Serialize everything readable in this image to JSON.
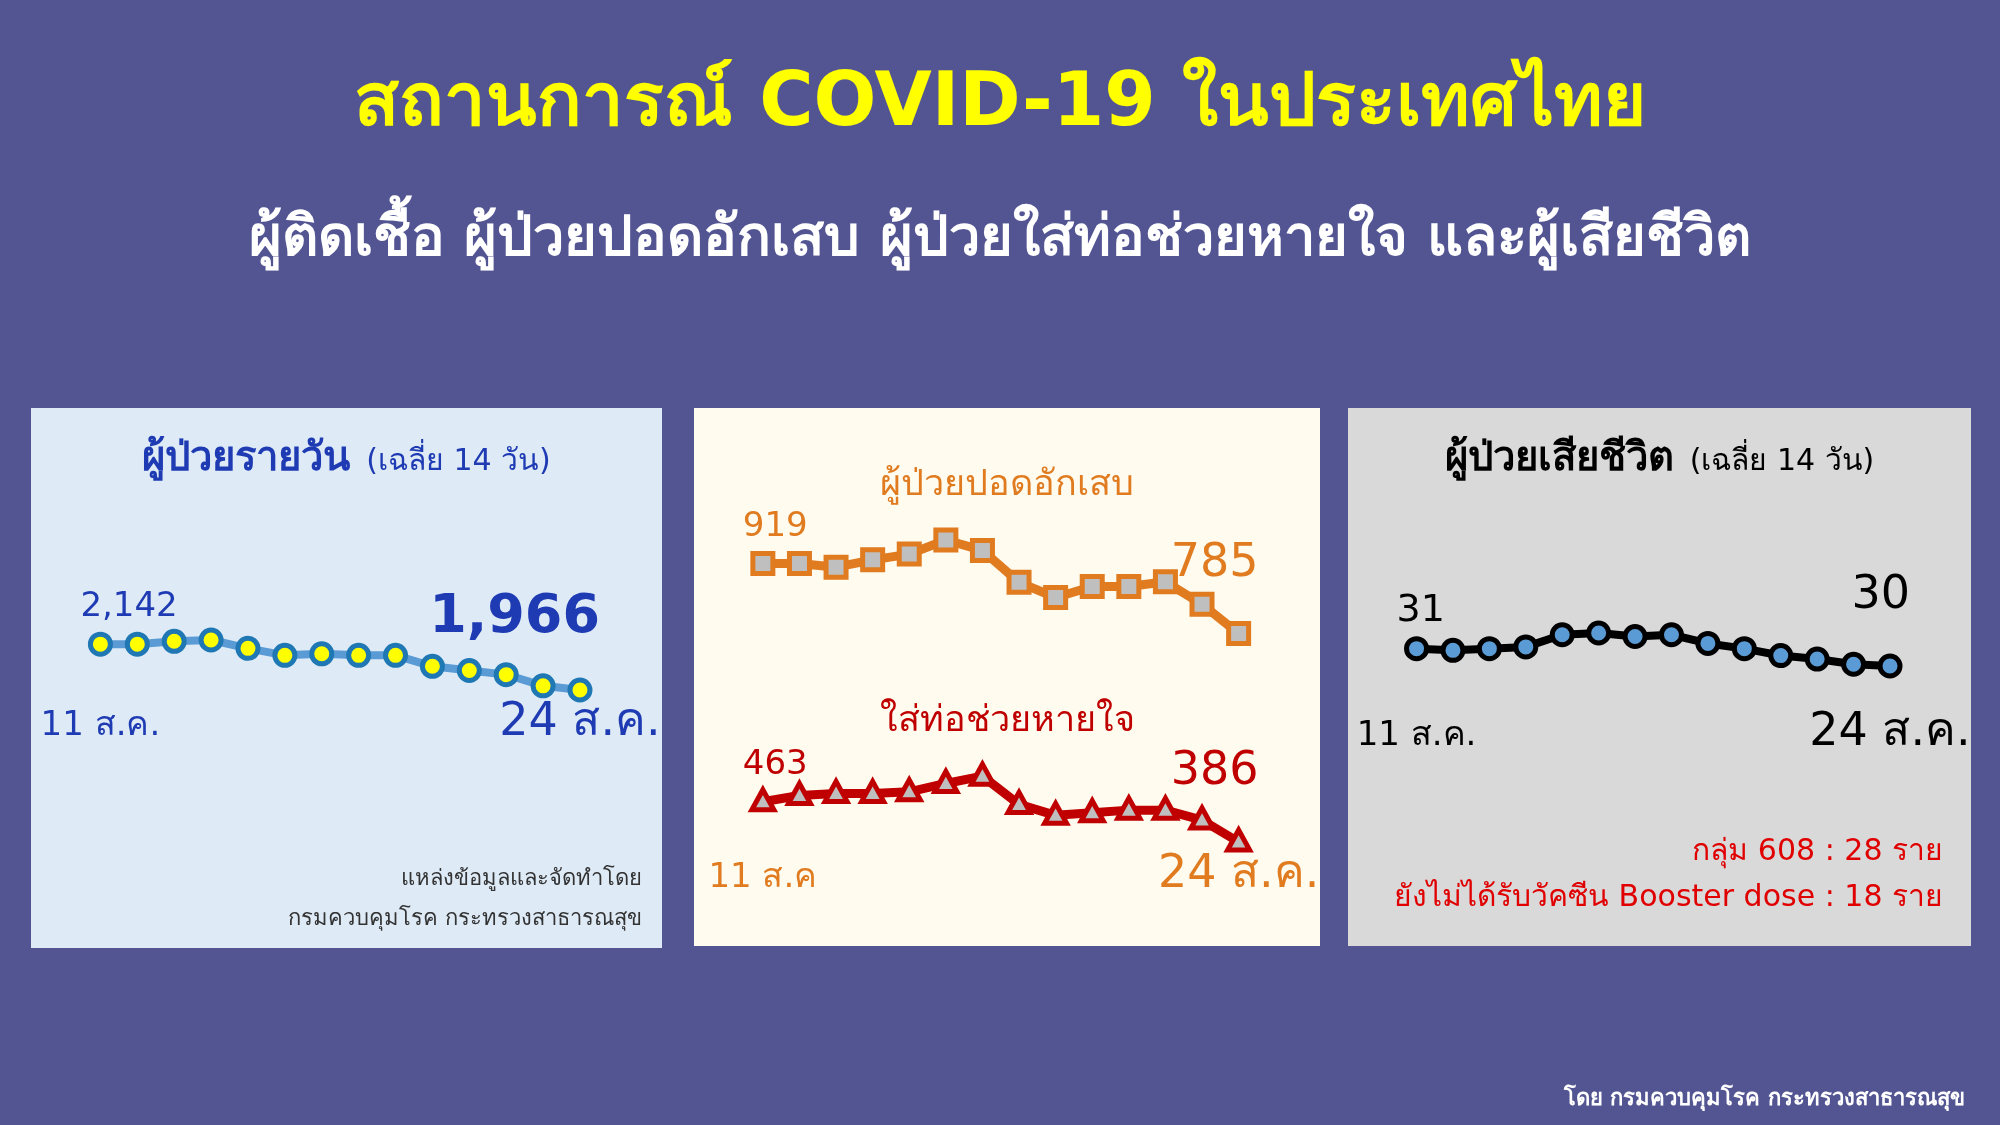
{
  "chart_data": [
    {
      "type": "line",
      "title": "ผู้ป่วยรายวัน",
      "subtitle": "(เฉลี่ย 14 วัน)",
      "marker": "circle",
      "categories": [
        "11 ส.ค.",
        null,
        null,
        null,
        null,
        null,
        null,
        null,
        null,
        null,
        null,
        null,
        null,
        "24 ส.ค."
      ],
      "series": [
        {
          "color": "#5b9bd5",
          "values": [
            2142,
            2142,
            2153,
            2158,
            2126,
            2099,
            2105,
            2099,
            2099,
            2057,
            2041,
            2025,
            1982,
            1966
          ],
          "value_labels": [
            "2,142",
            null,
            null,
            null,
            null,
            null,
            null,
            null,
            null,
            null,
            null,
            null,
            null,
            "1,966"
          ]
        }
      ],
      "annotations": [
        "สถานการณ์ COVID-19 ในประเทศไทย",
        "ผู้ติดเชื้อ ผู้ป่วยปอดอักเสบ ผู้ป่วยใส่ท่อช่วยหายใจ และผู้เสียชีวิต",
        "แหล่งข้อมูลและจัดทำโดย",
        "กรมควบคุมโรค กระทรวงสาธารณสุข"
      ]
    },
    {
      "type": "line",
      "categories": [
        "11 ส.ค",
        null,
        null,
        null,
        null,
        null,
        null,
        null,
        null,
        null,
        null,
        null,
        null,
        "24 ส.ค."
      ],
      "series": [
        {
          "name": "ผู้ป่วยปอดอักเสบ",
          "color": "#e07b20",
          "marker": "square",
          "values": [
            919,
            919,
            912,
            926,
            937,
            964,
            944,
            883,
            854,
            875,
            875,
            884,
            841,
            785
          ],
          "value_labels": [
            "919",
            null,
            null,
            null,
            null,
            null,
            null,
            null,
            null,
            null,
            null,
            null,
            null,
            "785"
          ]
        },
        {
          "name": "ใส่ท่อช่วยหายใจ",
          "color": "#c00000",
          "marker": "triangle",
          "values": [
            463,
            475,
            479,
            479,
            482,
            498,
            512,
            458,
            437,
            442,
            447,
            447,
            428,
            386
          ],
          "value_labels": [
            "463",
            null,
            null,
            null,
            null,
            null,
            null,
            null,
            null,
            null,
            null,
            null,
            null,
            "386"
          ]
        }
      ]
    },
    {
      "type": "line",
      "title": "ผู้ป่วยเสียชีวิต",
      "subtitle": "(เฉลี่ย 14 วัน)",
      "marker": "circle",
      "categories": [
        "11 ส.ค.",
        null,
        null,
        null,
        null,
        null,
        null,
        null,
        null,
        null,
        null,
        null,
        null,
        "24 ส.ค."
      ],
      "series": [
        {
          "color": "#000000",
          "values": [
            31,
            30.9,
            31,
            31.1,
            31.8,
            31.9,
            31.7,
            31.8,
            31.3,
            31,
            30.6,
            30.4,
            30.1,
            30
          ],
          "value_labels": [
            "31",
            null,
            null,
            null,
            null,
            null,
            null,
            null,
            null,
            null,
            null,
            null,
            null,
            "30"
          ]
        }
      ],
      "annotations": [
        "กลุ่ม 608 : 28 ราย",
        "ยังไม่ได้รับวัคซีน Booster dose : 18 ราย",
        "โดย กรมควบคุมโรค กระทรวงสาธารณสุข"
      ]
    }
  ]
}
